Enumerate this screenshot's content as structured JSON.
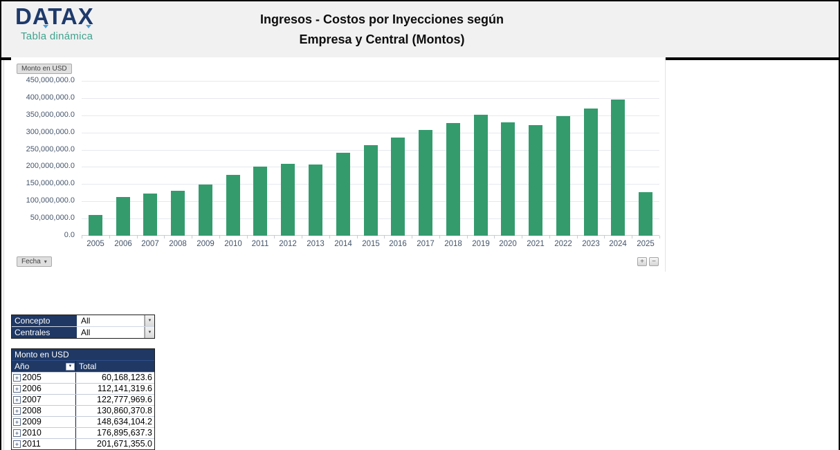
{
  "header": {
    "logo_text": "DATAX",
    "logo_subtitle": "Tabla dinámica",
    "title_line1": "Ingresos - Costos por Inyecciones según",
    "title_line2": "Empresa y Central (Montos)"
  },
  "icons": {
    "dropdown_caret": "▾",
    "combo_caret": "▼",
    "filter_caret": "▼",
    "expand_box": "+",
    "zoom_in": "+",
    "zoom_out": "−"
  },
  "chart": {
    "value_field_label": "Monto en USD",
    "axis_field_label": "Fecha"
  },
  "chart_data": {
    "type": "bar",
    "title": "Ingresos - Costos por Inyecciones según Empresa y Central (Montos)",
    "xlabel": "Fecha",
    "ylabel": "Monto en USD",
    "grid": true,
    "legend": "none",
    "bar_color": "#349b6d",
    "ylim": [
      0,
      450000000
    ],
    "ytick_step": 50000000,
    "ytick_labels": [
      "450,000,000.0",
      "400,000,000.0",
      "350,000,000.0",
      "300,000,000.0",
      "250,000,000.0",
      "200,000,000.0",
      "150,000,000.0",
      "100,000,000.0",
      "50,000,000.0",
      "0.0"
    ],
    "categories": [
      "2005",
      "2006",
      "2007",
      "2008",
      "2009",
      "2010",
      "2011",
      "2012",
      "2013",
      "2014",
      "2015",
      "2016",
      "2017",
      "2018",
      "2019",
      "2020",
      "2021",
      "2022",
      "2023",
      "2024",
      "2025"
    ],
    "values": [
      60168123.6,
      112141319.6,
      122777969.6,
      130860370.8,
      148634104.2,
      176895637.3,
      201671355.0,
      208500000,
      206500000,
      242000000,
      263500000,
      285500000,
      308000000,
      327000000,
      351000000,
      329000000,
      321000000,
      347000000,
      370000000,
      396000000,
      126000000
    ]
  },
  "filters": {
    "rows": [
      {
        "label": "Concepto",
        "value": "All"
      },
      {
        "label": "Centrales",
        "value": "All"
      }
    ]
  },
  "pivot_table": {
    "value_field": "Monto en USD",
    "row_field": "Año",
    "total_label": "Total",
    "rows": [
      {
        "year": "2005",
        "total": "60,168,123.6"
      },
      {
        "year": "2006",
        "total": "112,141,319.6"
      },
      {
        "year": "2007",
        "total": "122,777,969.6"
      },
      {
        "year": "2008",
        "total": "130,860,370.8"
      },
      {
        "year": "2009",
        "total": "148,634,104.2"
      },
      {
        "year": "2010",
        "total": "176,895,637.3"
      },
      {
        "year": "2011",
        "total": "201,671,355.0"
      }
    ]
  },
  "colors": {
    "bar_green": "#349b6d",
    "navy": "#1f3864",
    "logo_navy": "#1e3a6b",
    "teal": "#3fa28c",
    "header_gray": "#f1f1f2",
    "axis_text": "#44546a"
  }
}
